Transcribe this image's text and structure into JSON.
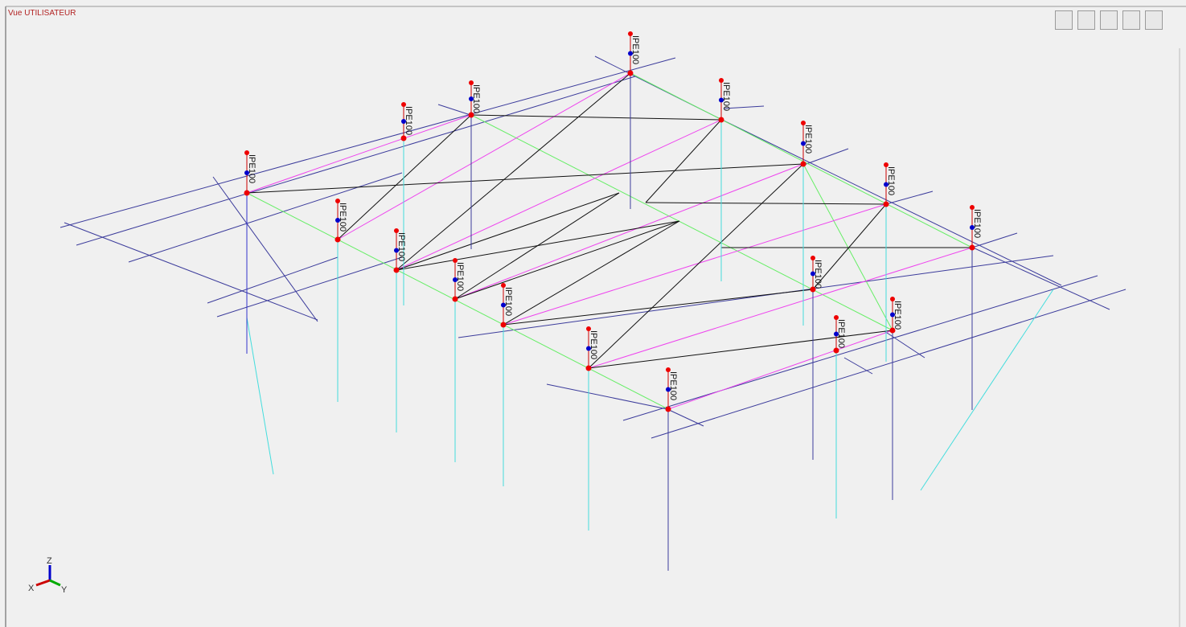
{
  "view_title": "Vue UTILISATEUR",
  "columns": [
    {
      "label": "IPE100"
    },
    {
      "label": "IPE100"
    },
    {
      "label": "IPE100"
    },
    {
      "label": "IPE100"
    },
    {
      "label": "IPE100"
    },
    {
      "label": "IPE100"
    },
    {
      "label": "IPE100"
    },
    {
      "label": "IPE100"
    },
    {
      "label": "IPE100"
    },
    {
      "label": "IPE100"
    },
    {
      "label": "IPE100"
    },
    {
      "label": "IPE100"
    },
    {
      "label": "IPE100"
    },
    {
      "label": "IPE100"
    },
    {
      "label": "IPE100"
    },
    {
      "label": "IPE100"
    },
    {
      "label": "IPE100"
    }
  ],
  "axes": {
    "x": "X",
    "y": "Y",
    "z": "Z"
  }
}
